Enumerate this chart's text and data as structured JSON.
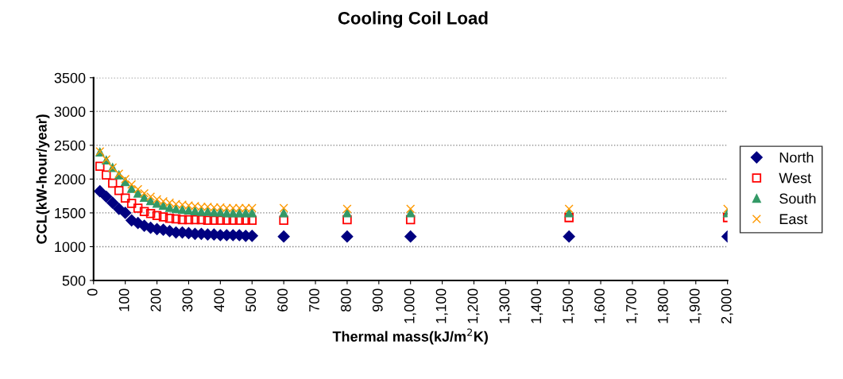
{
  "chart_data": {
    "type": "scatter",
    "title": "Cooling Coil Load",
    "xlabel": "Thermal mass(kJ/m$^{2}$K)",
    "ylabel": "CCL(kW-hour/year)",
    "x": [
      20,
      40,
      60,
      80,
      100,
      120,
      140,
      160,
      180,
      200,
      220,
      240,
      260,
      280,
      300,
      320,
      340,
      360,
      380,
      400,
      420,
      440,
      460,
      480,
      500,
      600,
      800,
      1000,
      1500,
      2000
    ],
    "series": [
      {
        "name": "North",
        "color": "#000080",
        "marker": "diamond",
        "values": [
          1820,
          1740,
          1650,
          1560,
          1500,
          1390,
          1350,
          1310,
          1280,
          1260,
          1250,
          1230,
          1210,
          1210,
          1200,
          1190,
          1190,
          1180,
          1180,
          1170,
          1170,
          1170,
          1170,
          1160,
          1160,
          1150,
          1150,
          1150,
          1150,
          1150
        ]
      },
      {
        "name": "West",
        "color": "#ff0000",
        "marker": "square",
        "values": [
          2190,
          2060,
          1940,
          1830,
          1720,
          1640,
          1570,
          1520,
          1490,
          1460,
          1440,
          1420,
          1410,
          1400,
          1400,
          1400,
          1400,
          1390,
          1390,
          1390,
          1390,
          1390,
          1390,
          1390,
          1390,
          1390,
          1400,
          1400,
          1430,
          1430
        ]
      },
      {
        "name": "South",
        "color": "#339966",
        "marker": "triangle",
        "values": [
          2400,
          2280,
          2170,
          2060,
          1960,
          1860,
          1790,
          1730,
          1680,
          1640,
          1610,
          1580,
          1560,
          1550,
          1540,
          1530,
          1520,
          1520,
          1510,
          1510,
          1500,
          1500,
          1500,
          1500,
          1500,
          1500,
          1500,
          1500,
          1500,
          1500
        ]
      },
      {
        "name": "East",
        "color": "#ff9900",
        "marker": "cross",
        "values": [
          2410,
          2290,
          2170,
          2080,
          2000,
          1920,
          1850,
          1790,
          1740,
          1700,
          1670,
          1650,
          1630,
          1620,
          1610,
          1600,
          1590,
          1590,
          1580,
          1580,
          1570,
          1570,
          1570,
          1570,
          1570,
          1570,
          1560,
          1560,
          1560,
          1560
        ]
      }
    ],
    "xlim": [
      0,
      2000
    ],
    "xticks": [
      0,
      100,
      200,
      300,
      400,
      500,
      600,
      700,
      800,
      900,
      {
        "value": 1000,
        "label": "1,000"
      },
      {
        "value": 1100,
        "label": "1,100"
      },
      {
        "value": 1200,
        "label": "1,200"
      },
      {
        "value": 1300,
        "label": "1,300"
      },
      {
        "value": 1400,
        "label": "1,400"
      },
      {
        "value": 1500,
        "label": "1,500"
      },
      {
        "value": 1600,
        "label": "1,600"
      },
      {
        "value": 1700,
        "label": "1,700"
      },
      {
        "value": 1800,
        "label": "1,800"
      },
      {
        "value": 1900,
        "label": "1,900"
      },
      {
        "value": 2000,
        "label": "2,000"
      }
    ],
    "ylim": [
      500,
      3500
    ],
    "yticks": [
      500,
      1000,
      1500,
      2000,
      2500,
      3000,
      3500
    ],
    "grid": "y",
    "legend": "right"
  }
}
